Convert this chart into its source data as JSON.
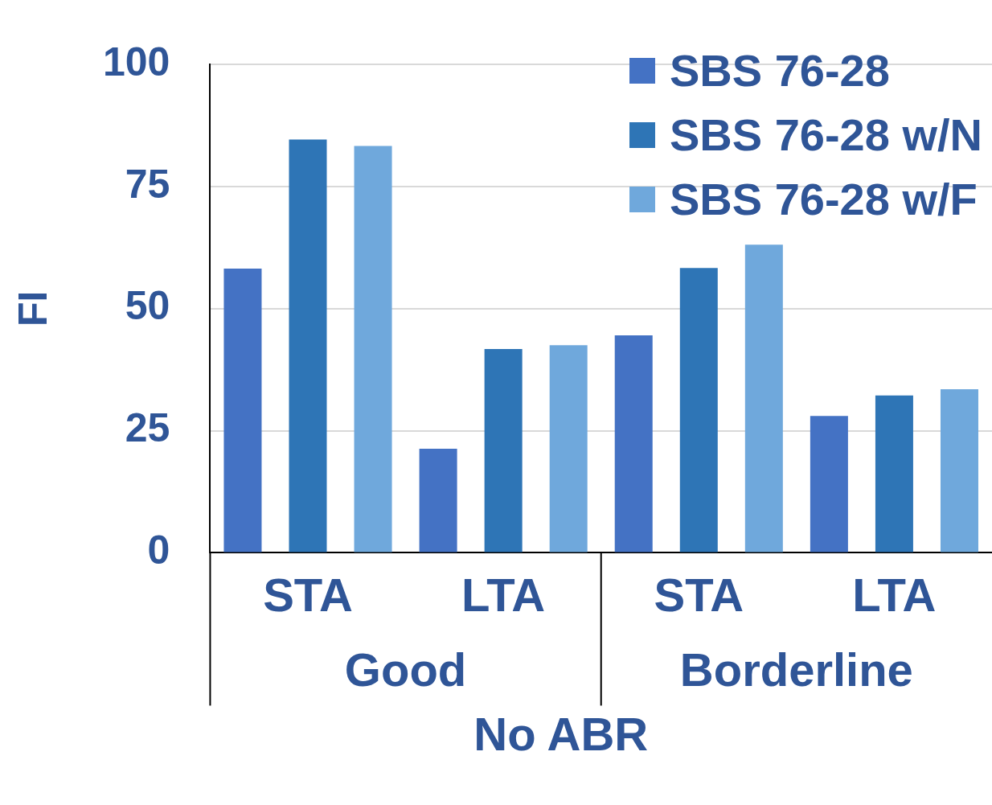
{
  "chart_data": {
    "type": "bar",
    "categories": [
      "STA",
      "LTA",
      "STA",
      "LTA"
    ],
    "series": [
      {
        "name": "SBS 76-28",
        "color": "#4472c4",
        "values": [
          58.2,
          21.3,
          44.5,
          28.0
        ]
      },
      {
        "name": "SBS 76-28 w/N",
        "color": "#2e75b6",
        "values": [
          84.6,
          41.7,
          58.3,
          32.2
        ]
      },
      {
        "name": "SBS 76-28 w/F",
        "color": "#6fa8dc",
        "values": [
          83.3,
          42.5,
          63.1,
          33.5
        ]
      }
    ],
    "ylabel": "FI",
    "xlabel": "No ABR",
    "annotations": [
      "Good",
      "Borderline"
    ],
    "ylim": [
      0,
      100
    ],
    "yticks": [
      0,
      25,
      50,
      75,
      100
    ],
    "grid": "y",
    "legend": "top right"
  }
}
